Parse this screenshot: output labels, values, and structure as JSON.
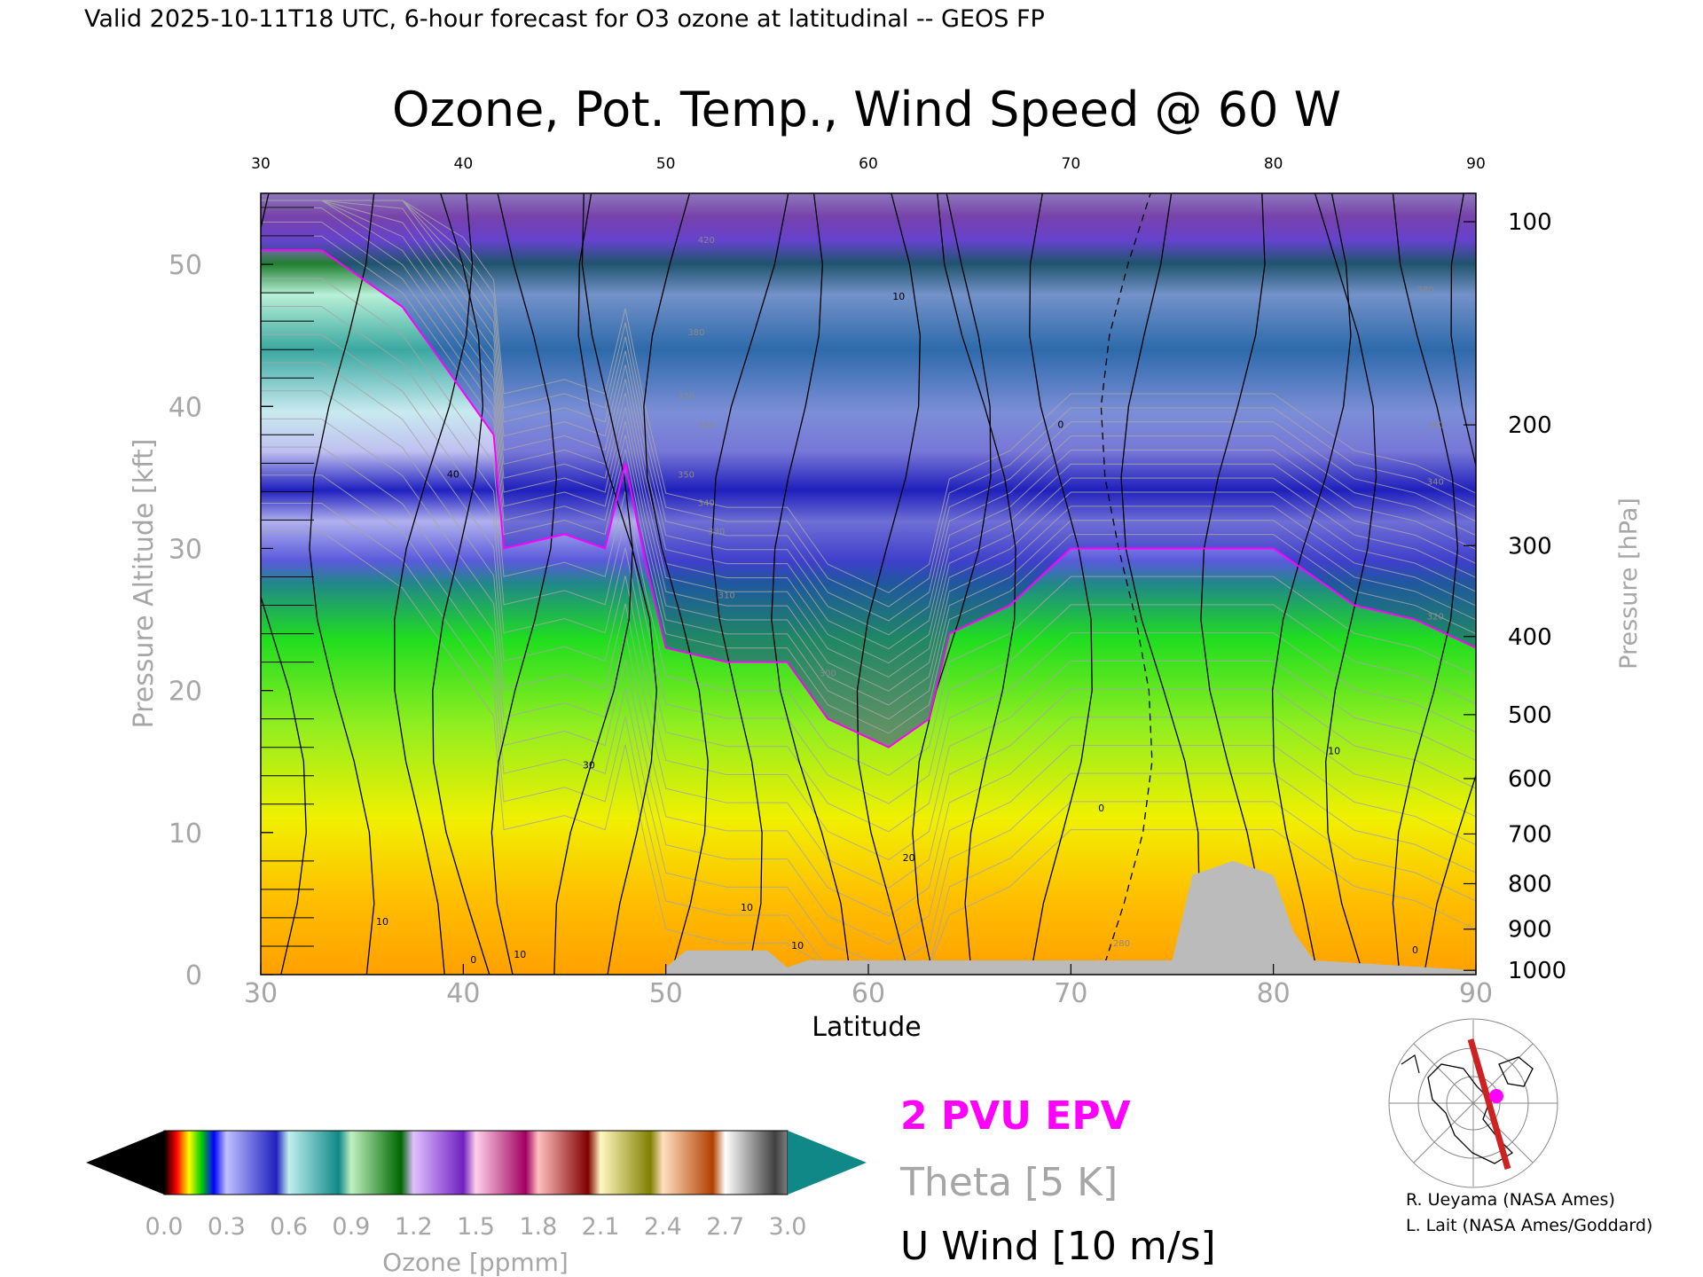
{
  "header": {
    "valid_line": "Valid 2025-10-11T18 UTC, 6-hour forecast for O3 ozone at latitudinal -- GEOS FP"
  },
  "chart_data": {
    "type": "heatmap",
    "title": "Ozone, Pot. Temp., Wind Speed @ 60 W",
    "xlabel": "Latitude",
    "ylabel_left": "Pressure Altitude [kft]",
    "ylabel_right": "Pressure [hPa]",
    "x_range": [
      30,
      90
    ],
    "y_range_kft": [
      0,
      55
    ],
    "x_ticks": [
      "30",
      "40",
      "50",
      "60",
      "70",
      "80",
      "90"
    ],
    "y_ticks_kft": [
      "0",
      "10",
      "20",
      "30",
      "40",
      "50"
    ],
    "pressure_ticks": [
      {
        "label": "100",
        "kft": 53.0
      },
      {
        "label": "200",
        "kft": 38.7
      },
      {
        "label": "300",
        "kft": 30.2
      },
      {
        "label": "400",
        "kft": 23.8
      },
      {
        "label": "500",
        "kft": 18.3
      },
      {
        "label": "600",
        "kft": 13.8
      },
      {
        "label": "700",
        "kft": 9.9
      },
      {
        "label": "800",
        "kft": 6.4
      },
      {
        "label": "900",
        "kft": 3.2
      },
      {
        "label": "1000",
        "kft": 0.3
      }
    ],
    "tropopause_kft": [
      {
        "lat": 30,
        "kft": 51
      },
      {
        "lat": 33,
        "kft": 51
      },
      {
        "lat": 37,
        "kft": 47
      },
      {
        "lat": 40,
        "kft": 41
      },
      {
        "lat": 41.5,
        "kft": 38
      },
      {
        "lat": 42,
        "kft": 30
      },
      {
        "lat": 45,
        "kft": 31
      },
      {
        "lat": 47,
        "kft": 30
      },
      {
        "lat": 48,
        "kft": 36
      },
      {
        "lat": 49,
        "kft": 29
      },
      {
        "lat": 50,
        "kft": 23
      },
      {
        "lat": 53,
        "kft": 22
      },
      {
        "lat": 56,
        "kft": 22
      },
      {
        "lat": 58,
        "kft": 18
      },
      {
        "lat": 61,
        "kft": 16
      },
      {
        "lat": 63,
        "kft": 18
      },
      {
        "lat": 64,
        "kft": 24
      },
      {
        "lat": 67,
        "kft": 26
      },
      {
        "lat": 70,
        "kft": 30
      },
      {
        "lat": 75,
        "kft": 30
      },
      {
        "lat": 80,
        "kft": 30
      },
      {
        "lat": 84,
        "kft": 26
      },
      {
        "lat": 87,
        "kft": 25
      },
      {
        "lat": 90,
        "kft": 23
      }
    ],
    "terrain_kft": [
      {
        "lat": 50,
        "kft": 0.5
      },
      {
        "lat": 51,
        "kft": 1.7
      },
      {
        "lat": 55,
        "kft": 1.7
      },
      {
        "lat": 56,
        "kft": 0.5
      },
      {
        "lat": 57,
        "kft": 1
      },
      {
        "lat": 75,
        "kft": 1
      },
      {
        "lat": 76,
        "kft": 7
      },
      {
        "lat": 78,
        "kft": 8
      },
      {
        "lat": 80,
        "kft": 7
      },
      {
        "lat": 81,
        "kft": 3
      },
      {
        "lat": 82,
        "kft": 1
      },
      {
        "lat": 90,
        "kft": 0.3
      }
    ],
    "contour_labels": [
      {
        "text": "0",
        "lat": 40.5,
        "kft": 0.8
      },
      {
        "text": "10",
        "lat": 42.8,
        "kft": 1.2
      },
      {
        "text": "10",
        "lat": 36.0,
        "kft": 3.5
      },
      {
        "text": "40",
        "lat": 39.5,
        "kft": 35.0
      },
      {
        "text": "30",
        "lat": 46.2,
        "kft": 14.5
      },
      {
        "text": "10",
        "lat": 56.5,
        "kft": 1.8
      },
      {
        "text": "10",
        "lat": 54.0,
        "kft": 4.5
      },
      {
        "text": "20",
        "lat": 62.0,
        "kft": 8.0
      },
      {
        "text": "0",
        "lat": 71.5,
        "kft": 11.5
      },
      {
        "text": "10",
        "lat": 61.5,
        "kft": 47.5
      },
      {
        "text": "0",
        "lat": 69.5,
        "kft": 38.5
      },
      {
        "text": "10",
        "lat": 83.0,
        "kft": 15.5
      },
      {
        "text": "0",
        "lat": 87.0,
        "kft": 1.5
      }
    ],
    "theta_labels": [
      {
        "text": "420",
        "lat": 52.0,
        "kft": 51.5
      },
      {
        "text": "380",
        "lat": 51.5,
        "kft": 45.0
      },
      {
        "text": "370",
        "lat": 51.0,
        "kft": 40.5
      },
      {
        "text": "360",
        "lat": 52.0,
        "kft": 38.5
      },
      {
        "text": "350",
        "lat": 51.0,
        "kft": 35.0
      },
      {
        "text": "340",
        "lat": 52.0,
        "kft": 33.0
      },
      {
        "text": "330",
        "lat": 52.5,
        "kft": 31.0
      },
      {
        "text": "310",
        "lat": 53.0,
        "kft": 26.5
      },
      {
        "text": "300",
        "lat": 58.0,
        "kft": 21.0
      },
      {
        "text": "280",
        "lat": 72.5,
        "kft": 2.0
      },
      {
        "text": "380",
        "lat": 87.5,
        "kft": 48.0
      },
      {
        "text": "360",
        "lat": 88.0,
        "kft": 38.5
      },
      {
        "text": "340",
        "lat": 88.0,
        "kft": 34.5
      },
      {
        "text": "320",
        "lat": 88.0,
        "kft": 25.0
      }
    ],
    "colorbar": {
      "label": "Ozone [ppmm]",
      "ticks": [
        "0.0",
        "0.3",
        "0.6",
        "0.9",
        "1.2",
        "1.5",
        "1.8",
        "2.1",
        "2.4",
        "2.7",
        "3.0"
      ],
      "range": [
        0.0,
        3.0
      ]
    }
  },
  "legend": {
    "epv": "2 PVU EPV",
    "theta": "Theta [5 K]",
    "uwind": "U Wind [10 m/s]",
    "epv_color": "#ff00ff",
    "theta_color": "#a6a6a6"
  },
  "credits": {
    "line1": "R. Ueyama (NASA Ames)",
    "line2": "L. Lait (NASA Ames/Goddard)"
  },
  "map": {
    "icon": "globe-map-icon",
    "section_color": "#cc2222",
    "marker_color": "#ff00ff"
  }
}
